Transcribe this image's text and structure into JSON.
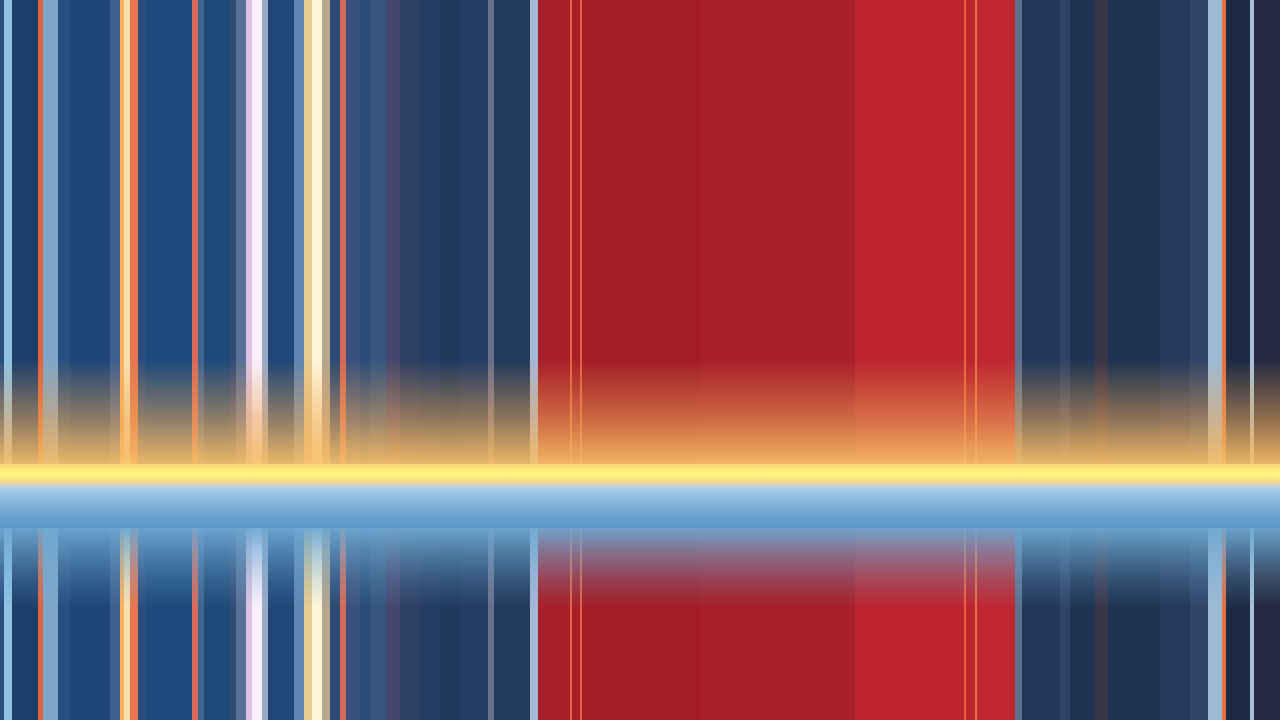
{
  "colors": {
    "navy": "#1f3a63",
    "blue": "#1e4b7f",
    "red": "#a61e28",
    "red_light": "#c0262f",
    "yellow": "#fff47c",
    "light_blue": "#7fb3da",
    "orange": "#f0aa5a"
  }
}
